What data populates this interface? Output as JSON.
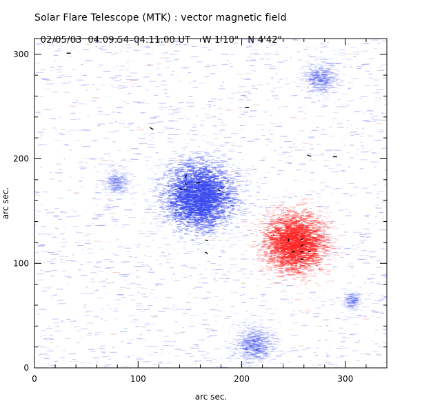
{
  "header": {
    "title": "Solar Flare Telescope (MTK) : vector magnetic field",
    "subtitle_date": "02/05/03",
    "subtitle_time": "04:09:54–04:11:00 UT",
    "subtitle_coords": "W 1'10\"   N 4'42\""
  },
  "chart_data": {
    "type": "heatmap",
    "description_series": "vector magnetic field map with transverse field line segments",
    "xlabel": "arc sec.",
    "ylabel": "arc sec.",
    "xlim": [
      0,
      340
    ],
    "ylim": [
      0,
      315
    ],
    "xticks": [
      0,
      100,
      200,
      300
    ],
    "yticks": [
      0,
      100,
      200,
      300
    ],
    "colors": {
      "negative": "#3b4cf0",
      "positive": "#ff2a2a",
      "noise": "#8c8cf5",
      "vectors": "#000000"
    },
    "regions": [
      {
        "polarity": "negative",
        "center": [
          158,
          165
        ],
        "radius": 32,
        "peak": 1.0
      },
      {
        "polarity": "positive",
        "center": [
          250,
          120
        ],
        "radius": 28,
        "peak": 1.0
      },
      {
        "polarity": "negative",
        "center": [
          275,
          278
        ],
        "radius": 16,
        "peak": 0.35
      },
      {
        "polarity": "negative",
        "center": [
          78,
          178
        ],
        "radius": 12,
        "peak": 0.3
      },
      {
        "polarity": "negative",
        "center": [
          210,
          22
        ],
        "radius": 18,
        "peak": 0.4
      },
      {
        "polarity": "negative",
        "center": [
          305,
          65
        ],
        "radius": 8,
        "peak": 0.3
      }
    ],
    "vectors": [
      {
        "x": 33,
        "y": 301,
        "angle": 0,
        "length": 4
      },
      {
        "x": 113,
        "y": 229,
        "angle": -30,
        "length": 4
      },
      {
        "x": 205,
        "y": 249,
        "angle": 0,
        "length": 4
      },
      {
        "x": 265,
        "y": 203,
        "angle": -20,
        "length": 4
      },
      {
        "x": 290,
        "y": 202,
        "angle": 0,
        "length": 4
      },
      {
        "x": 146,
        "y": 183,
        "angle": 60,
        "length": 3
      },
      {
        "x": 146,
        "y": 176,
        "angle": -60,
        "length": 3
      },
      {
        "x": 141,
        "y": 171,
        "angle": -20,
        "length": 3
      },
      {
        "x": 146,
        "y": 171,
        "angle": 0,
        "length": 3
      },
      {
        "x": 158,
        "y": 177,
        "angle": 0,
        "length": 4
      },
      {
        "x": 178,
        "y": 170,
        "angle": -25,
        "length": 3
      },
      {
        "x": 166,
        "y": 122,
        "angle": -15,
        "length": 3
      },
      {
        "x": 166,
        "y": 110,
        "angle": -25,
        "length": 3
      },
      {
        "x": 245,
        "y": 122,
        "angle": 80,
        "length": 3
      },
      {
        "x": 258,
        "y": 123,
        "angle": 30,
        "length": 3
      },
      {
        "x": 258,
        "y": 117,
        "angle": 30,
        "length": 3
      },
      {
        "x": 250,
        "y": 111,
        "angle": 10,
        "length": 3
      },
      {
        "x": 258,
        "y": 111,
        "angle": 0,
        "length": 3
      },
      {
        "x": 265,
        "y": 111,
        "angle": 15,
        "length": 3
      },
      {
        "x": 258,
        "y": 104,
        "angle": 10,
        "length": 3
      }
    ]
  }
}
